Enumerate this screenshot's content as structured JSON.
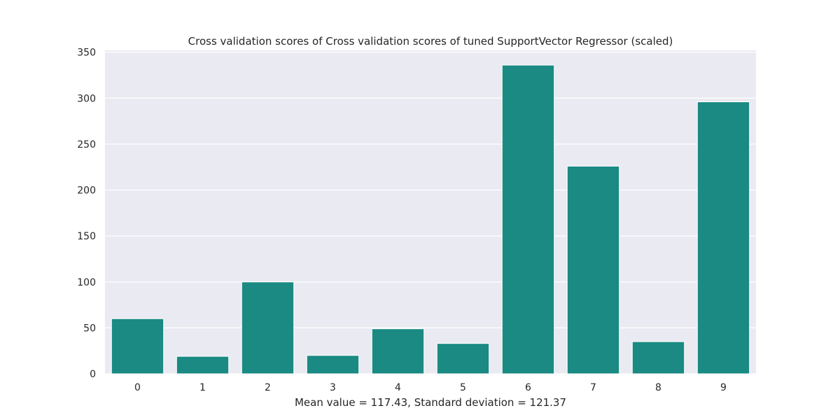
{
  "chart_data": {
    "type": "bar",
    "title": "Cross validation scores of Cross validation scores of tuned SupportVector Regressor (scaled)",
    "xlabel": "Mean value = 117.43, Standard deviation = 121.37",
    "ylabel": "",
    "categories": [
      "0",
      "1",
      "2",
      "3",
      "4",
      "5",
      "6",
      "7",
      "8",
      "9"
    ],
    "values": [
      60,
      19,
      100,
      20,
      49,
      33,
      336,
      226,
      35,
      296
    ],
    "yticks": [
      "0",
      "50",
      "100",
      "150",
      "200",
      "250",
      "300",
      "350"
    ],
    "ylim": [
      0,
      352
    ],
    "grid": true,
    "bar_color": "#1a8a83",
    "plot_background": "#eaeaf2",
    "grid_color": "#ffffff"
  }
}
